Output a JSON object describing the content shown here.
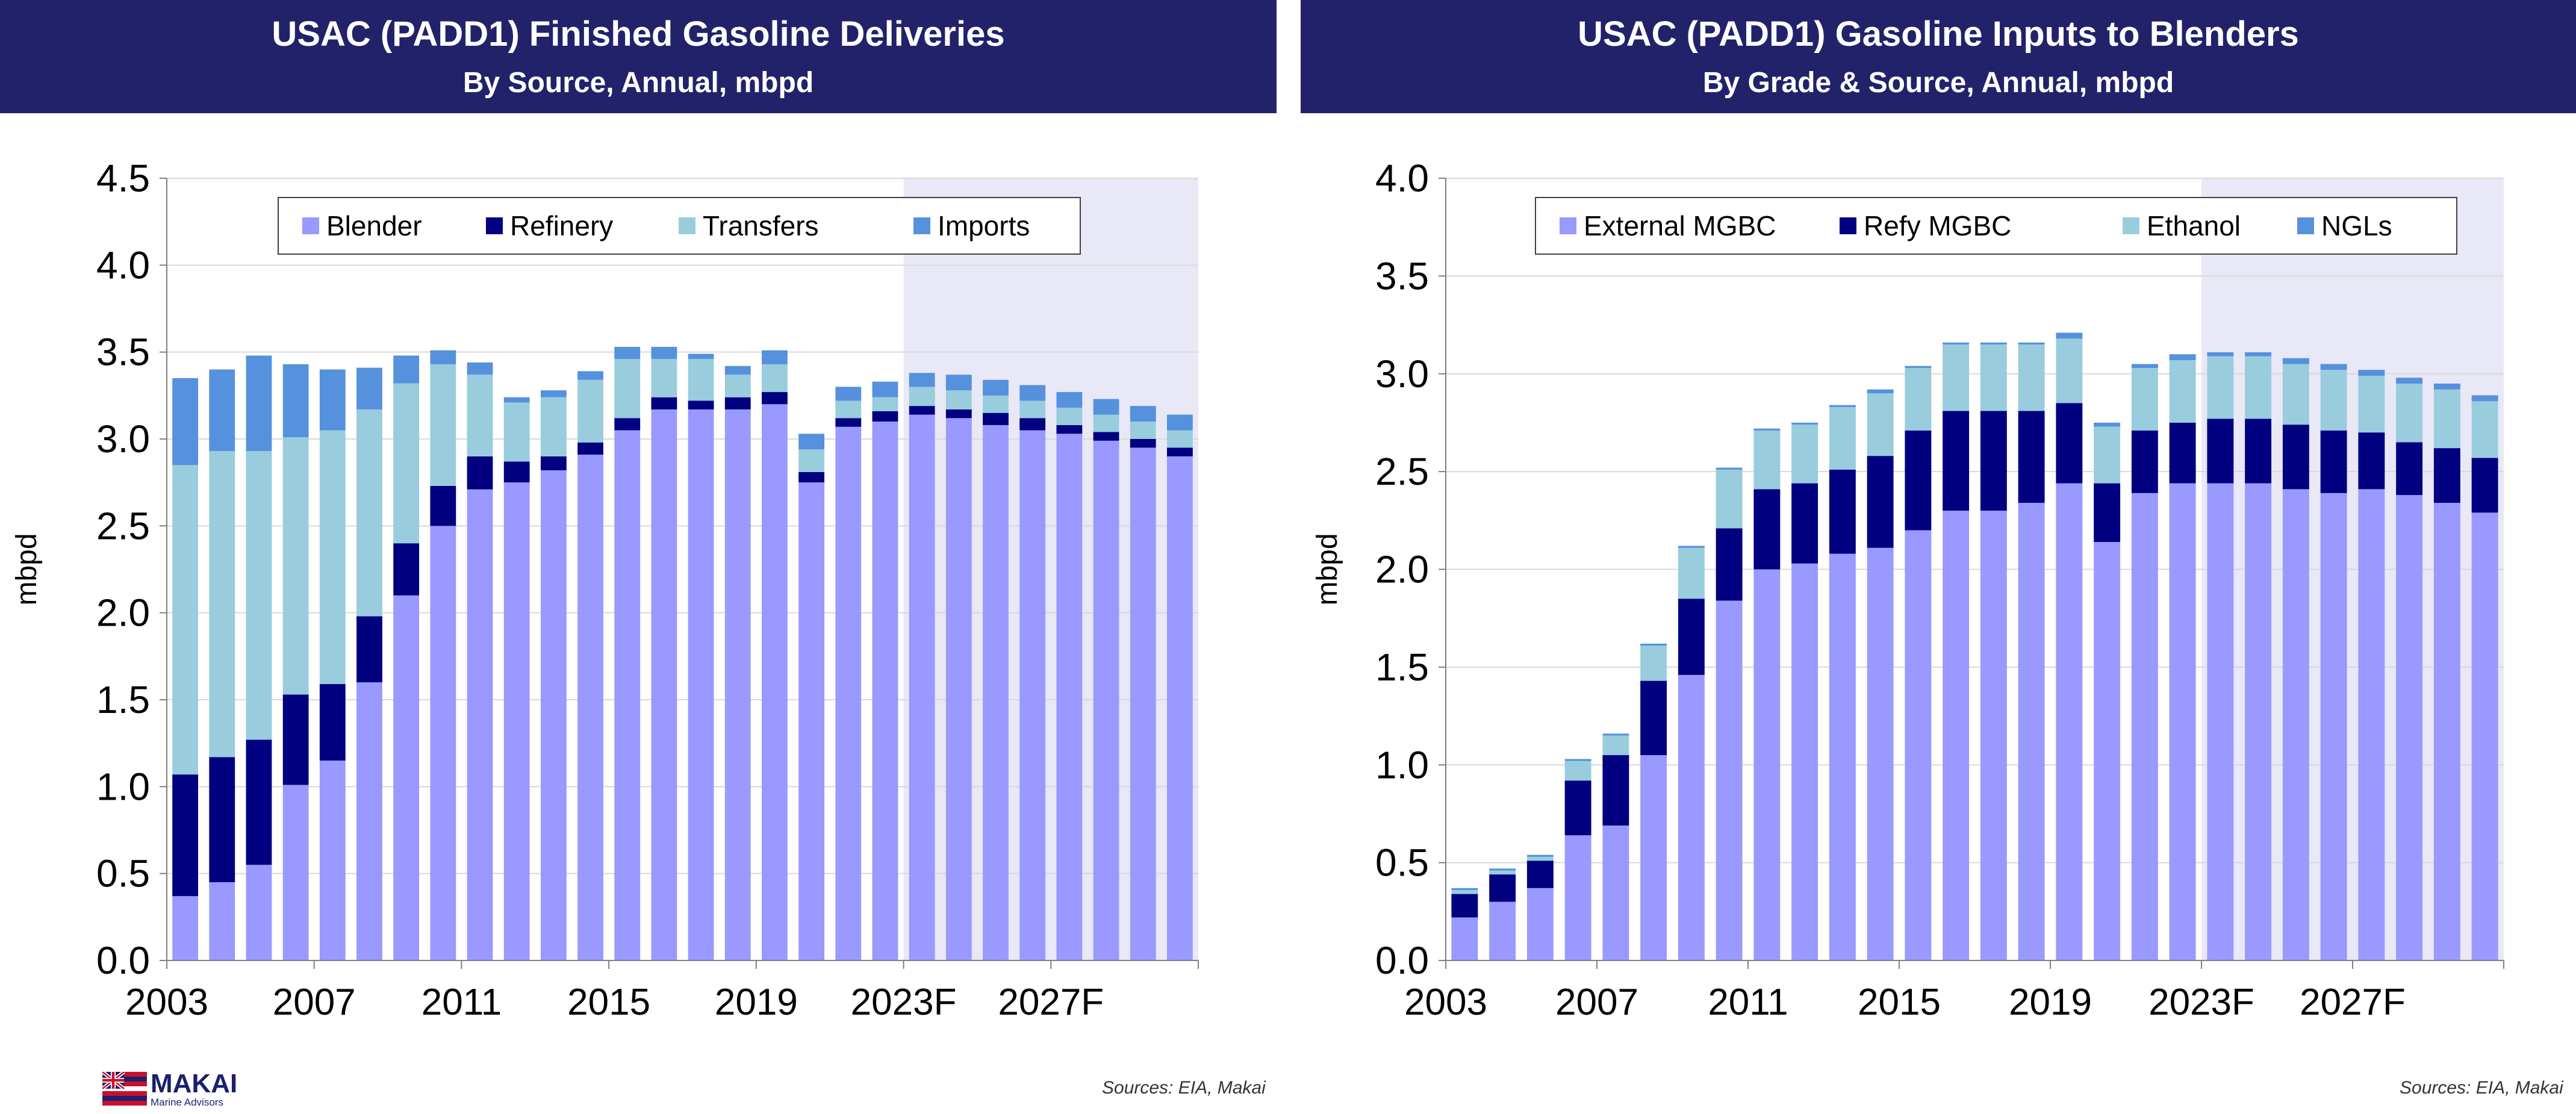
{
  "colors": {
    "banner": "#22226a",
    "forecast_shade": "#e8e8f7",
    "grid": "#d9d9d9"
  },
  "logo": {
    "name": "MAKAI",
    "sub": "Marine Advisors",
    "icon": "hawaii-flag-icon"
  },
  "chart_data": [
    {
      "type": "bar",
      "stacked": true,
      "title": "USAC (PADD1) Finished Gasoline Deliveries",
      "subtitle": "By Source, Annual, mbpd",
      "ylabel": "mbpd",
      "ylim": [
        0,
        4.5
      ],
      "yticks": [
        "0.0",
        "0.5",
        "1.0",
        "1.5",
        "2.0",
        "2.5",
        "3.0",
        "3.5",
        "4.0",
        "4.5"
      ],
      "ytick_values": [
        0,
        0.5,
        1,
        1.5,
        2,
        2.5,
        3,
        3.5,
        4,
        4.5
      ],
      "categories": [
        "2003",
        "2004",
        "2005",
        "2006",
        "2007",
        "2008",
        "2009",
        "2010",
        "2011",
        "2012",
        "2013",
        "2014",
        "2015",
        "2016",
        "2017",
        "2018",
        "2019",
        "2020",
        "2021",
        "2022",
        "2023F",
        "2024F",
        "2025F",
        "2026F",
        "2027F",
        "2028F",
        "2029F",
        "2030F"
      ],
      "xtick_labels": [
        {
          "index": 0,
          "label": "2003"
        },
        {
          "index": 4,
          "label": "2007"
        },
        {
          "index": 8,
          "label": "2011"
        },
        {
          "index": 12,
          "label": "2015"
        },
        {
          "index": 16,
          "label": "2019"
        },
        {
          "index": 20,
          "label": "2023F"
        },
        {
          "index": 24,
          "label": "2027F"
        }
      ],
      "forecast_start_index": 20,
      "grid": true,
      "legend": "top-center",
      "source": "Sources: EIA, Makai",
      "series": [
        {
          "name": "Blender",
          "color": "#9999ff",
          "values": [
            0.37,
            0.45,
            0.55,
            1.01,
            1.15,
            1.6,
            2.1,
            2.5,
            2.71,
            2.75,
            2.82,
            2.91,
            3.05,
            3.17,
            3.17,
            3.17,
            3.2,
            2.75,
            3.07,
            3.1,
            3.14,
            3.12,
            3.08,
            3.05,
            3.03,
            2.99,
            2.95,
            2.9
          ]
        },
        {
          "name": "Refinery",
          "color": "#000080",
          "values": [
            0.7,
            0.72,
            0.72,
            0.52,
            0.44,
            0.38,
            0.3,
            0.23,
            0.19,
            0.12,
            0.08,
            0.07,
            0.07,
            0.07,
            0.05,
            0.07,
            0.07,
            0.06,
            0.05,
            0.06,
            0.05,
            0.05,
            0.07,
            0.07,
            0.05,
            0.05,
            0.05,
            0.05
          ]
        },
        {
          "name": "Transfers",
          "color": "#99ccdd",
          "values": [
            1.78,
            1.76,
            1.66,
            1.48,
            1.46,
            1.19,
            0.92,
            0.7,
            0.47,
            0.34,
            0.34,
            0.36,
            0.34,
            0.22,
            0.24,
            0.13,
            0.16,
            0.13,
            0.1,
            0.08,
            0.11,
            0.11,
            0.1,
            0.1,
            0.1,
            0.1,
            0.1,
            0.1
          ]
        },
        {
          "name": "Imports",
          "color": "#5591dd",
          "values": [
            0.5,
            0.47,
            0.55,
            0.42,
            0.35,
            0.24,
            0.16,
            0.08,
            0.07,
            0.03,
            0.04,
            0.05,
            0.07,
            0.07,
            0.03,
            0.05,
            0.08,
            0.09,
            0.08,
            0.09,
            0.08,
            0.09,
            0.09,
            0.09,
            0.09,
            0.09,
            0.09,
            0.09
          ]
        }
      ]
    },
    {
      "type": "bar",
      "stacked": true,
      "title": "USAC (PADD1) Gasoline Inputs to Blenders",
      "subtitle": "By Grade & Source, Annual, mbpd",
      "ylabel": "mbpd",
      "ylim": [
        0,
        4.0
      ],
      "yticks": [
        "0.0",
        "0.5",
        "1.0",
        "1.5",
        "2.0",
        "2.5",
        "3.0",
        "3.5",
        "4.0"
      ],
      "ytick_values": [
        0,
        0.5,
        1,
        1.5,
        2,
        2.5,
        3,
        3.5,
        4
      ],
      "categories": [
        "2003",
        "2004",
        "2005",
        "2006",
        "2007",
        "2008",
        "2009",
        "2010",
        "2011",
        "2012",
        "2013",
        "2014",
        "2015",
        "2016",
        "2017",
        "2018",
        "2019",
        "2020",
        "2021",
        "2022",
        "2023F",
        "2024F",
        "2025F",
        "2026F",
        "2027F",
        "2028F",
        "2029F",
        "2030F"
      ],
      "xtick_labels": [
        {
          "index": 0,
          "label": "2003"
        },
        {
          "index": 4,
          "label": "2007"
        },
        {
          "index": 8,
          "label": "2011"
        },
        {
          "index": 12,
          "label": "2015"
        },
        {
          "index": 16,
          "label": "2019"
        },
        {
          "index": 20,
          "label": "2023F"
        },
        {
          "index": 24,
          "label": "2027F"
        }
      ],
      "forecast_start_index": 20,
      "grid": true,
      "legend": "top-center",
      "source": "Sources: EIA, Makai",
      "series": [
        {
          "name": "External MGBC",
          "color": "#9999ff",
          "values": [
            0.22,
            0.3,
            0.37,
            0.64,
            0.69,
            1.05,
            1.46,
            1.84,
            2.0,
            2.03,
            2.08,
            2.11,
            2.2,
            2.3,
            2.3,
            2.34,
            2.44,
            2.14,
            2.39,
            2.44,
            2.44,
            2.44,
            2.41,
            2.39,
            2.41,
            2.38,
            2.34,
            2.29
          ]
        },
        {
          "name": "Refy MGBC",
          "color": "#000080",
          "values": [
            0.12,
            0.14,
            0.14,
            0.28,
            0.36,
            0.38,
            0.39,
            0.37,
            0.41,
            0.41,
            0.43,
            0.47,
            0.51,
            0.51,
            0.51,
            0.47,
            0.41,
            0.3,
            0.32,
            0.31,
            0.33,
            0.33,
            0.33,
            0.32,
            0.29,
            0.27,
            0.28,
            0.28
          ]
        },
        {
          "name": "Ethanol",
          "color": "#99ccdd",
          "values": [
            0.02,
            0.02,
            0.02,
            0.1,
            0.1,
            0.18,
            0.26,
            0.3,
            0.3,
            0.3,
            0.32,
            0.32,
            0.32,
            0.34,
            0.34,
            0.34,
            0.33,
            0.29,
            0.32,
            0.32,
            0.32,
            0.32,
            0.31,
            0.31,
            0.29,
            0.3,
            0.3,
            0.29
          ]
        },
        {
          "name": "NGLs",
          "color": "#5591dd",
          "values": [
            0.01,
            0.01,
            0.01,
            0.01,
            0.01,
            0.01,
            0.01,
            0.01,
            0.01,
            0.01,
            0.01,
            0.02,
            0.01,
            0.01,
            0.01,
            0.01,
            0.03,
            0.02,
            0.02,
            0.03,
            0.02,
            0.02,
            0.03,
            0.03,
            0.03,
            0.03,
            0.03,
            0.03
          ]
        }
      ]
    }
  ]
}
